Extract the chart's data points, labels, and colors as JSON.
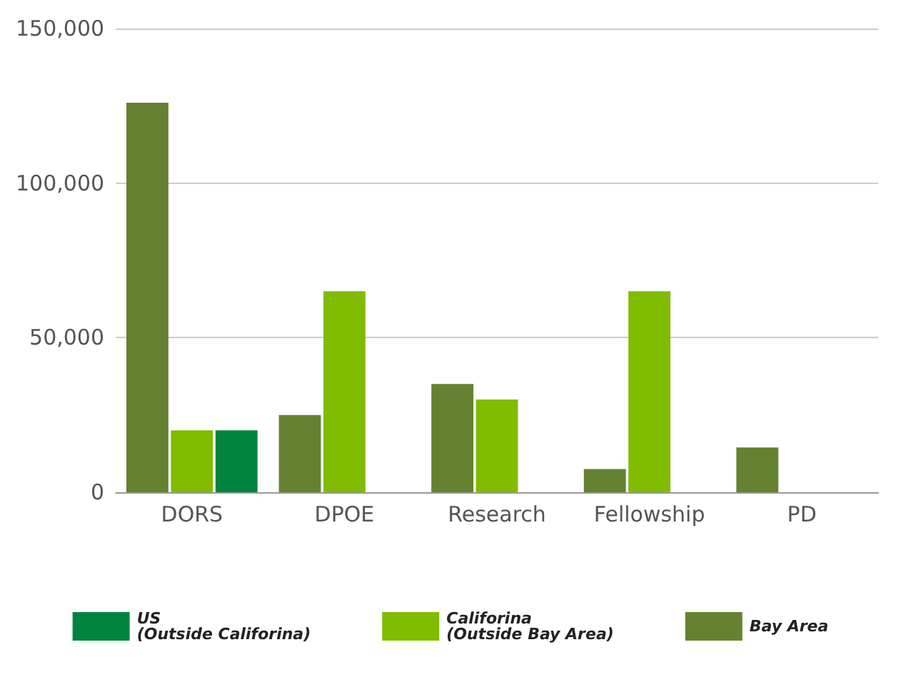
{
  "chart_data": {
    "type": "bar",
    "categories": [
      "DORS",
      "DPOE",
      "Research",
      "Fellowship",
      "PD"
    ],
    "series": [
      {
        "name": "Bay Area",
        "color": "#648231",
        "values": [
          126000,
          25000,
          35000,
          7500,
          14500
        ]
      },
      {
        "name": "Califorina\n(Outside Bay Area)",
        "color": "#80bc00",
        "values": [
          20000,
          65000,
          30000,
          65000,
          null
        ]
      },
      {
        "name": "US\n(Outside Califorina)",
        "color": "#00843d",
        "values": [
          20000,
          null,
          null,
          null,
          null
        ]
      }
    ],
    "ylim": [
      0,
      150000
    ],
    "yticks": [
      0,
      {
        "value": 50000,
        "label": "50,000"
      },
      {
        "value": 100000,
        "label": "100,000"
      },
      {
        "value": 150000,
        "label": "150,000"
      }
    ],
    "grid": "y",
    "legend": "bottom"
  }
}
